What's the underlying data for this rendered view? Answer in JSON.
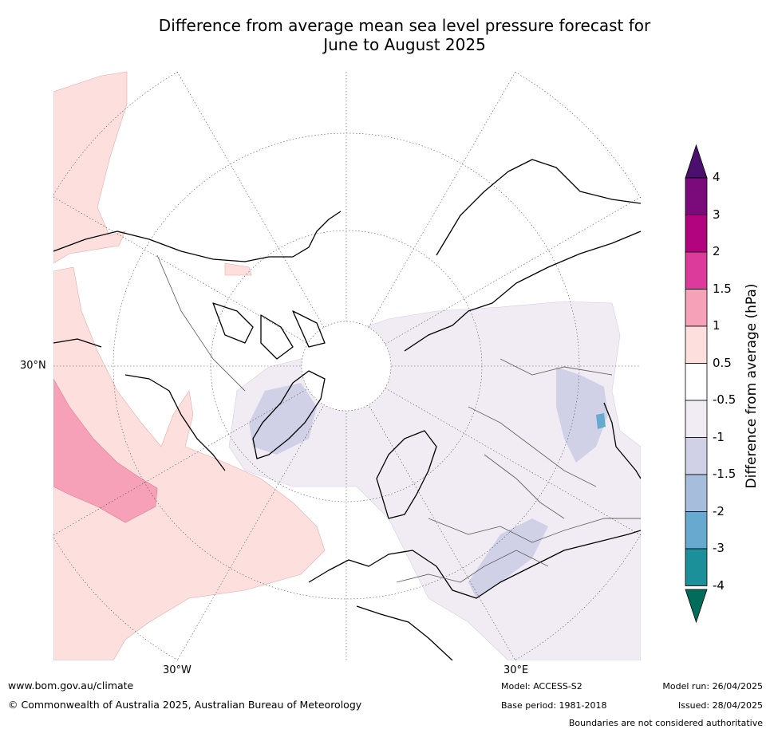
{
  "title": {
    "line1": "Difference from average mean sea level pressure forecast for",
    "line2": "June to August 2025"
  },
  "map": {
    "projection": "north-polar-stereographic",
    "lat_labels": {
      "lat30n": "30°N",
      "lon30w": "30°W",
      "lon30e": "30°E"
    }
  },
  "colorbar": {
    "title": "Difference from average (hPa)",
    "ticks": [
      "4",
      "3",
      "2",
      "1.5",
      "1",
      "0.5",
      "-0.5",
      "-1",
      "-1.5",
      "-2",
      "-3",
      "-4"
    ],
    "colors": [
      "#4b0f6e",
      "#7b0a7a",
      "#b3047f",
      "#dd3b9b",
      "#f7a1b9",
      "#fde0dd",
      "#ffffff",
      "#f1ebf4",
      "#d0d1e6",
      "#a6bddb",
      "#67a9cf",
      "#1c9099",
      "#016c59"
    ]
  },
  "footer": {
    "website": "www.bom.gov.au/climate",
    "copyright": "© Commonwealth of Australia 2025, Australian Bureau of Meteorology",
    "model": "Model: ACCESS-S2",
    "base_period": "Base period: 1981-2018",
    "model_run": "Model run: 26/04/2025",
    "issued": "Issued: 28/04/2025",
    "disclaimer": "Boundaries are not considered authoritative"
  }
}
